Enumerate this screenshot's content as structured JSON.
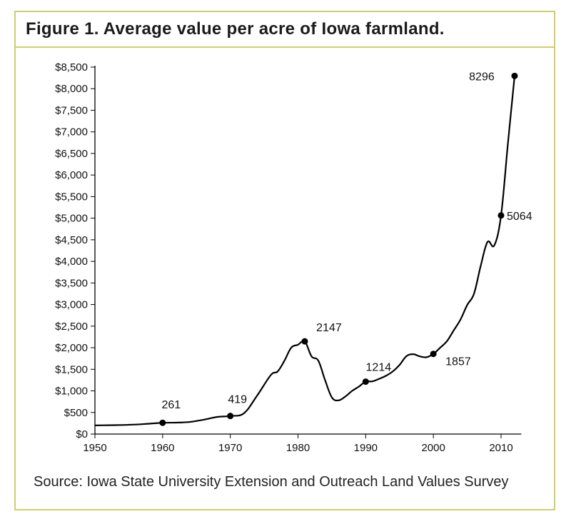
{
  "title": "Figure 1.  Average value per acre of Iowa farmland.",
  "source": "Source: Iowa State University Extension and Outreach Land Values Survey",
  "chart_data": {
    "type": "line",
    "title": "Figure 1.  Average value per acre of Iowa farmland.",
    "xlabel": "",
    "ylabel": "",
    "xlim": [
      1950,
      2013
    ],
    "ylim": [
      0,
      8500
    ],
    "grid": false,
    "x_ticks": [
      1950,
      1960,
      1970,
      1980,
      1990,
      2000,
      2010
    ],
    "x_tick_labels": [
      "1950",
      "1960",
      "1970",
      "1980",
      "1990",
      "2000",
      "2010"
    ],
    "y_ticks": [
      0,
      500,
      1000,
      1500,
      2000,
      2500,
      3000,
      3500,
      4000,
      4500,
      5000,
      5500,
      6000,
      6500,
      7000,
      7500,
      8000,
      8500
    ],
    "y_tick_labels": [
      "$0",
      "$500",
      "$1,000",
      "$1,500",
      "$2,000",
      "$2,500",
      "$3,000",
      "$3,500",
      "$4,000",
      "$4,500",
      "$5,000",
      "$5,500",
      "$6,000",
      "$6,500",
      "$7,000",
      "$7,500",
      "$8,000",
      "$8,500"
    ],
    "series": [
      {
        "color": "#000000",
        "x": [
          1950,
          1952,
          1954,
          1956,
          1958,
          1960,
          1962,
          1964,
          1966,
          1968,
          1970,
          1972,
          1974,
          1976,
          1977,
          1978,
          1979,
          1980,
          1981,
          1982,
          1983,
          1984,
          1985,
          1986,
          1987,
          1988,
          1989,
          1990,
          1991,
          1992,
          1993,
          1994,
          1995,
          1996,
          1997,
          1998,
          1999,
          2000,
          2001,
          2002,
          2003,
          2004,
          2005,
          2006,
          2007,
          2008,
          2009,
          2010,
          2011,
          2012
        ],
        "y": [
          200,
          205,
          210,
          220,
          240,
          261,
          265,
          280,
          330,
          395,
          419,
          480,
          900,
          1370,
          1450,
          1700,
          2000,
          2070,
          2147,
          1800,
          1700,
          1250,
          850,
          780,
          870,
          1000,
          1100,
          1214,
          1220,
          1280,
          1350,
          1450,
          1600,
          1800,
          1850,
          1800,
          1780,
          1857,
          2000,
          2150,
          2400,
          2650,
          2990,
          3250,
          3900,
          4450,
          4370,
          5064,
          6708,
          8296
        ]
      }
    ],
    "highlight_points": [
      {
        "x": 1960,
        "y": 261,
        "label": "261"
      },
      {
        "x": 1970,
        "y": 419,
        "label": "419"
      },
      {
        "x": 1981,
        "y": 2147,
        "label": "2147"
      },
      {
        "x": 1990,
        "y": 1214,
        "label": "1214"
      },
      {
        "x": 2000,
        "y": 1857,
        "label": "1857"
      },
      {
        "x": 2010,
        "y": 5064,
        "label": "5064"
      },
      {
        "x": 2012,
        "y": 8296,
        "label": "8296"
      }
    ]
  }
}
